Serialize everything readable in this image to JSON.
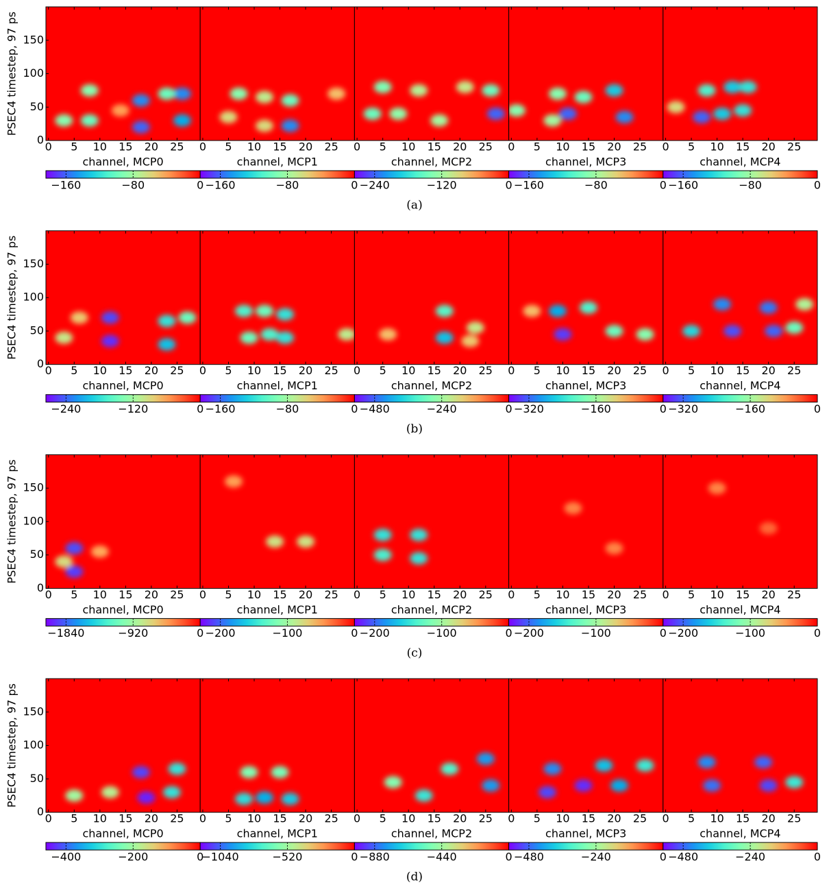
{
  "captions": [
    "(a)",
    "(b)",
    "(c)",
    "(d)"
  ],
  "chart_data": [
    {
      "type": "heatmap",
      "ylabel": "PSEC4 timestep, 97 ps",
      "yticks": [
        0,
        50,
        100,
        150
      ],
      "xlabel": "channel, MCP0",
      "xlim": [
        -0.5,
        29.5
      ],
      "ylim": [
        0,
        200
      ],
      "xticks": [
        0,
        5,
        10,
        15,
        20,
        25
      ],
      "clim": [
        -184,
        0
      ],
      "cticks": [
        {
          "value": -160,
          "label": "−160"
        },
        {
          "value": -80,
          "label": "−80"
        },
        0
      ],
      "spots": [
        [
          3,
          30,
          -90
        ],
        [
          8,
          30,
          -100
        ],
        [
          8,
          75,
          -90
        ],
        [
          18,
          60,
          -150
        ],
        [
          18,
          20,
          -160
        ],
        [
          26,
          70,
          -150
        ],
        [
          26,
          30,
          -140
        ],
        [
          23,
          70,
          -100
        ],
        [
          14,
          45,
          -40
        ]
      ]
    },
    {
      "type": "heatmap",
      "xlabel": "channel, MCP1",
      "xlim": [
        -0.5,
        29.5
      ],
      "ylim": [
        0,
        200
      ],
      "xticks": [
        0,
        5,
        10,
        15,
        20,
        25
      ],
      "clim": [
        -184,
        0
      ],
      "cticks": [
        {
          "value": -160,
          "label": "−160"
        },
        {
          "value": -80,
          "label": "−80"
        },
        0
      ],
      "spots": [
        [
          7,
          70,
          -90
        ],
        [
          12,
          65,
          -70
        ],
        [
          17,
          60,
          -100
        ],
        [
          17,
          22,
          -150
        ],
        [
          5,
          35,
          -60
        ],
        [
          12,
          22,
          -60
        ],
        [
          26,
          70,
          -50
        ]
      ]
    },
    {
      "type": "heatmap",
      "xlabel": "channel, MCP2",
      "xlim": [
        -0.5,
        29.5
      ],
      "ylim": [
        0,
        200
      ],
      "xticks": [
        0,
        5,
        10,
        15,
        20,
        25
      ],
      "clim": [
        -276,
        0
      ],
      "cticks": [
        {
          "value": -240,
          "label": "−240"
        },
        {
          "value": -120,
          "label": "−120"
        },
        0
      ],
      "spots": [
        [
          5,
          80,
          -140
        ],
        [
          12,
          75,
          -110
        ],
        [
          3,
          40,
          -150
        ],
        [
          8,
          40,
          -130
        ],
        [
          16,
          30,
          -120
        ],
        [
          26,
          75,
          -150
        ],
        [
          27,
          40,
          -240
        ],
        [
          21,
          80,
          -100
        ]
      ]
    },
    {
      "type": "heatmap",
      "xlabel": "channel, MCP3",
      "xlim": [
        -0.5,
        29.5
      ],
      "ylim": [
        0,
        200
      ],
      "xticks": [
        0,
        5,
        10,
        15,
        20,
        25
      ],
      "clim": [
        -184,
        0
      ],
      "cticks": [
        {
          "value": -160,
          "label": "−160"
        },
        {
          "value": -80,
          "label": "−80"
        },
        0
      ],
      "spots": [
        [
          9,
          70,
          -90
        ],
        [
          14,
          65,
          -100
        ],
        [
          11,
          40,
          -160
        ],
        [
          20,
          75,
          -130
        ],
        [
          22,
          35,
          -150
        ],
        [
          1,
          45,
          -90
        ],
        [
          8,
          30,
          -80
        ]
      ]
    },
    {
      "type": "heatmap",
      "xlabel": "channel, MCP4",
      "xlim": [
        -0.5,
        29.5
      ],
      "ylim": [
        0,
        200
      ],
      "xticks": [
        0,
        5,
        10,
        15,
        20,
        25
      ],
      "clim": [
        -184,
        0
      ],
      "cticks": [
        {
          "value": -160,
          "label": "−160"
        },
        {
          "value": -80,
          "label": "−80"
        },
        0
      ],
      "spots": [
        [
          8,
          75,
          -110
        ],
        [
          13,
          80,
          -130
        ],
        [
          16,
          80,
          -120
        ],
        [
          7,
          35,
          -160
        ],
        [
          11,
          40,
          -130
        ],
        [
          15,
          45,
          -120
        ],
        [
          2,
          50,
          -60
        ]
      ]
    },
    {
      "type": "heatmap",
      "ylabel": "PSEC4 timestep, 97 ps",
      "yticks": [
        0,
        50,
        100,
        150
      ],
      "xlabel": "channel, MCP0",
      "xlim": [
        -0.5,
        29.5
      ],
      "ylim": [
        0,
        200
      ],
      "xticks": [
        0,
        5,
        10,
        15,
        20,
        25
      ],
      "clim": [
        -276,
        0
      ],
      "cticks": [
        {
          "value": -240,
          "label": "−240"
        },
        {
          "value": -120,
          "label": "−120"
        },
        0
      ],
      "spots": [
        [
          12,
          70,
          -250
        ],
        [
          12,
          35,
          -260
        ],
        [
          23,
          65,
          -180
        ],
        [
          23,
          30,
          -200
        ],
        [
          27,
          70,
          -150
        ],
        [
          3,
          40,
          -100
        ],
        [
          6,
          70,
          -80
        ]
      ]
    },
    {
      "type": "heatmap",
      "xlabel": "channel, MCP1",
      "xlim": [
        -0.5,
        29.5
      ],
      "ylim": [
        0,
        200
      ],
      "xticks": [
        0,
        5,
        10,
        15,
        20,
        25
      ],
      "clim": [
        -184,
        0
      ],
      "cticks": [
        {
          "value": -160,
          "label": "−160"
        },
        {
          "value": -80,
          "label": "−80"
        },
        0
      ],
      "spots": [
        [
          8,
          80,
          -110
        ],
        [
          12,
          80,
          -100
        ],
        [
          16,
          75,
          -120
        ],
        [
          9,
          40,
          -100
        ],
        [
          13,
          45,
          -110
        ],
        [
          16,
          40,
          -120
        ],
        [
          28,
          45,
          -70
        ]
      ]
    },
    {
      "type": "heatmap",
      "xlabel": "channel, MCP2",
      "xlim": [
        -0.5,
        29.5
      ],
      "ylim": [
        0,
        200
      ],
      "xticks": [
        0,
        5,
        10,
        15,
        20,
        25
      ],
      "clim": [
        -552,
        0
      ],
      "cticks": [
        {
          "value": -480,
          "label": "−480"
        },
        {
          "value": -240,
          "label": "−240"
        },
        0
      ],
      "spots": [
        [
          17,
          80,
          -320
        ],
        [
          17,
          40,
          -400
        ],
        [
          23,
          55,
          -200
        ],
        [
          6,
          45,
          -150
        ],
        [
          22,
          35,
          -160
        ]
      ]
    },
    {
      "type": "heatmap",
      "xlabel": "channel, MCP3",
      "xlim": [
        -0.5,
        29.5
      ],
      "ylim": [
        0,
        200
      ],
      "xticks": [
        0,
        5,
        10,
        15,
        20,
        25
      ],
      "clim": [
        -368,
        0
      ],
      "cticks": [
        {
          "value": -320,
          "label": "−320"
        },
        {
          "value": -160,
          "label": "−160"
        },
        0
      ],
      "spots": [
        [
          9,
          80,
          -280
        ],
        [
          10,
          45,
          -340
        ],
        [
          15,
          85,
          -220
        ],
        [
          20,
          50,
          -200
        ],
        [
          26,
          45,
          -180
        ],
        [
          4,
          80,
          -100
        ]
      ]
    },
    {
      "type": "heatmap",
      "xlabel": "channel, MCP4",
      "xlim": [
        -0.5,
        29.5
      ],
      "ylim": [
        0,
        200
      ],
      "xticks": [
        0,
        5,
        10,
        15,
        20,
        25
      ],
      "clim": [
        -368,
        0
      ],
      "cticks": [
        {
          "value": -320,
          "label": "−320"
        },
        {
          "value": -160,
          "label": "−160"
        },
        0
      ],
      "spots": [
        [
          11,
          90,
          -300
        ],
        [
          20,
          85,
          -310
        ],
        [
          5,
          50,
          -250
        ],
        [
          13,
          50,
          -330
        ],
        [
          21,
          50,
          -320
        ],
        [
          25,
          55,
          -200
        ],
        [
          27,
          90,
          -150
        ]
      ]
    },
    {
      "type": "heatmap",
      "ylabel": "PSEC4 timestep, 97 ps",
      "yticks": [
        0,
        50,
        100,
        150
      ],
      "xlabel": "channel, MCP0",
      "xlim": [
        -0.5,
        29.5
      ],
      "ylim": [
        0,
        200
      ],
      "xticks": [
        0,
        5,
        10,
        15,
        20,
        25
      ],
      "clim": [
        -2116,
        0
      ],
      "cticks": [
        {
          "value": -1840,
          "label": "−1840"
        },
        {
          "value": -920,
          "label": "−920"
        },
        0
      ],
      "spots": [
        [
          5,
          60,
          -1900
        ],
        [
          5,
          25,
          -1950
        ],
        [
          3,
          40,
          -700
        ],
        [
          10,
          55,
          -500
        ]
      ]
    },
    {
      "type": "heatmap",
      "xlabel": "channel, MCP1",
      "xlim": [
        -0.5,
        29.5
      ],
      "ylim": [
        0,
        200
      ],
      "xticks": [
        0,
        5,
        10,
        15,
        20,
        25
      ],
      "clim": [
        -230,
        0
      ],
      "cticks": [
        {
          "value": -200,
          "label": "−200"
        },
        {
          "value": -100,
          "label": "−100"
        },
        0
      ],
      "spots": [
        [
          14,
          70,
          -80
        ],
        [
          20,
          70,
          -80
        ],
        [
          6,
          160,
          -50
        ]
      ]
    },
    {
      "type": "heatmap",
      "xlabel": "channel, MCP2",
      "xlim": [
        -0.5,
        29.5
      ],
      "ylim": [
        0,
        200
      ],
      "xticks": [
        0,
        5,
        10,
        15,
        20,
        25
      ],
      "clim": [
        -230,
        0
      ],
      "cticks": [
        {
          "value": -200,
          "label": "−200"
        },
        {
          "value": -100,
          "label": "−100"
        },
        0
      ],
      "spots": [
        [
          5,
          80,
          -150
        ],
        [
          12,
          80,
          -150
        ],
        [
          5,
          50,
          -140
        ],
        [
          12,
          45,
          -150
        ]
      ]
    },
    {
      "type": "heatmap",
      "xlabel": "channel, MCP3",
      "xlim": [
        -0.5,
        29.5
      ],
      "ylim": [
        0,
        200
      ],
      "xticks": [
        0,
        5,
        10,
        15,
        20,
        25
      ],
      "clim": [
        -230,
        0
      ],
      "cticks": [
        {
          "value": -200,
          "label": "−200"
        },
        {
          "value": -100,
          "label": "−100"
        },
        0
      ],
      "spots": [
        [
          12,
          120,
          -40
        ],
        [
          20,
          60,
          -40
        ]
      ]
    },
    {
      "type": "heatmap",
      "xlabel": "channel, MCP4",
      "xlim": [
        -0.5,
        29.5
      ],
      "ylim": [
        0,
        200
      ],
      "xticks": [
        0,
        5,
        10,
        15,
        20,
        25
      ],
      "clim": [
        -230,
        0
      ],
      "cticks": [
        {
          "value": -200,
          "label": "−200"
        },
        {
          "value": -100,
          "label": "−100"
        },
        0
      ],
      "spots": [
        [
          10,
          150,
          -40
        ],
        [
          20,
          90,
          -30
        ]
      ]
    },
    {
      "type": "heatmap",
      "ylabel": "PSEC4 timestep, 97 ps",
      "yticks": [
        0,
        50,
        100,
        150
      ],
      "xlabel": "channel, MCP0",
      "xlim": [
        -0.5,
        29.5
      ],
      "ylim": [
        0,
        200
      ],
      "xticks": [
        0,
        5,
        10,
        15,
        20,
        25
      ],
      "clim": [
        -460,
        0
      ],
      "cticks": [
        {
          "value": -400,
          "label": "−400"
        },
        {
          "value": -200,
          "label": "−200"
        },
        0
      ],
      "spots": [
        [
          18,
          60,
          -420
        ],
        [
          19,
          22,
          -440
        ],
        [
          24,
          30,
          -300
        ],
        [
          25,
          65,
          -300
        ],
        [
          5,
          25,
          -200
        ],
        [
          12,
          30,
          -180
        ]
      ]
    },
    {
      "type": "heatmap",
      "xlabel": "channel, MCP1",
      "xlim": [
        -0.5,
        29.5
      ],
      "ylim": [
        0,
        200
      ],
      "xticks": [
        0,
        5,
        10,
        15,
        20,
        25
      ],
      "clim": [
        -1196,
        0
      ],
      "cticks": [
        {
          "value": -1040,
          "label": "−1040"
        },
        {
          "value": -520,
          "label": "−520"
        },
        0
      ],
      "spots": [
        [
          9,
          60,
          -600
        ],
        [
          15,
          60,
          -620
        ],
        [
          12,
          22,
          -900
        ],
        [
          17,
          20,
          -850
        ],
        [
          8,
          20,
          -800
        ]
      ]
    },
    {
      "type": "heatmap",
      "xlabel": "channel, MCP2",
      "xlim": [
        -0.5,
        29.5
      ],
      "ylim": [
        0,
        200
      ],
      "xticks": [
        0,
        5,
        10,
        15,
        20,
        25
      ],
      "clim": [
        -1012,
        0
      ],
      "cticks": [
        {
          "value": -880,
          "label": "−880"
        },
        {
          "value": -440,
          "label": "−440"
        },
        0
      ],
      "spots": [
        [
          25,
          80,
          -800
        ],
        [
          26,
          40,
          -800
        ],
        [
          18,
          65,
          -600
        ],
        [
          13,
          25,
          -650
        ],
        [
          7,
          45,
          -500
        ]
      ]
    },
    {
      "type": "heatmap",
      "xlabel": "channel, MCP3",
      "xlim": [
        -0.5,
        29.5
      ],
      "ylim": [
        0,
        200
      ],
      "xticks": [
        0,
        5,
        10,
        15,
        20,
        25
      ],
      "clim": [
        -552,
        0
      ],
      "cticks": [
        {
          "value": -480,
          "label": "−480"
        },
        {
          "value": -240,
          "label": "−240"
        },
        0
      ],
      "spots": [
        [
          8,
          65,
          -450
        ],
        [
          7,
          30,
          -500
        ],
        [
          14,
          40,
          -520
        ],
        [
          18,
          70,
          -400
        ],
        [
          21,
          40,
          -420
        ],
        [
          26,
          70,
          -350
        ]
      ]
    },
    {
      "type": "heatmap",
      "xlabel": "channel, MCP4",
      "xlim": [
        -0.5,
        29.5
      ],
      "ylim": [
        0,
        200
      ],
      "xticks": [
        0,
        5,
        10,
        15,
        20,
        25
      ],
      "clim": [
        -552,
        0
      ],
      "cticks": [
        {
          "value": -480,
          "label": "−480"
        },
        {
          "value": -240,
          "label": "−240"
        },
        0
      ],
      "spots": [
        [
          8,
          75,
          -450
        ],
        [
          19,
          75,
          -480
        ],
        [
          9,
          40,
          -470
        ],
        [
          20,
          40,
          -500
        ],
        [
          25,
          45,
          -350
        ]
      ]
    }
  ]
}
